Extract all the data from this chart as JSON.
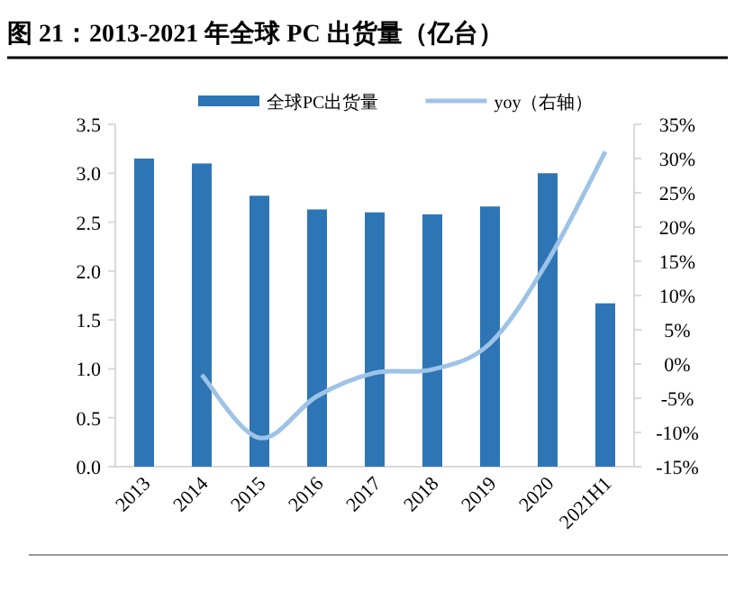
{
  "chart_data": {
    "type": "bar",
    "title": "图 21：2013-2021 年全球 PC 出货量（亿台）",
    "categories": [
      "2013",
      "2014",
      "2015",
      "2016",
      "2017",
      "2018",
      "2019",
      "2020",
      "2021H1"
    ],
    "series": [
      {
        "name": "全球PC出货量",
        "color": "#2e75b6",
        "values": [
          3.15,
          3.1,
          2.77,
          2.63,
          2.6,
          2.58,
          2.66,
          3.0,
          1.67
        ]
      },
      {
        "name": "yoy（右轴）",
        "type": "line",
        "axis": "y2",
        "color": "#9dc3e6",
        "values": [
          null,
          -1.6,
          -10.8,
          -4.7,
          -1.3,
          -0.8,
          3.0,
          15.0,
          31.0
        ]
      }
    ],
    "ylim": [
      0,
      3.5
    ],
    "yticks": [
      {
        "value": 0,
        "label": "0.0"
      },
      {
        "value": 0.5,
        "label": "0.5"
      },
      {
        "value": 1,
        "label": "1.0"
      },
      {
        "value": 1.5,
        "label": "1.5"
      },
      {
        "value": 2,
        "label": "2.0"
      },
      {
        "value": 2.5,
        "label": "2.5"
      },
      {
        "value": 3,
        "label": "3.0"
      },
      {
        "value": 3.5,
        "label": "3.5"
      }
    ],
    "y2lim": [
      -15,
      35
    ],
    "y2ticks": [
      {
        "value": -15,
        "label": "-15%"
      },
      {
        "value": -10,
        "label": "-10%"
      },
      {
        "value": -5,
        "label": "-5%"
      },
      {
        "value": 0,
        "label": "0%"
      },
      {
        "value": 5,
        "label": "5%"
      },
      {
        "value": 10,
        "label": "10%"
      },
      {
        "value": 15,
        "label": "15%"
      },
      {
        "value": 20,
        "label": "20%"
      },
      {
        "value": 25,
        "label": "25%"
      },
      {
        "value": 30,
        "label": "30%"
      },
      {
        "value": 35,
        "label": "35%"
      }
    ],
    "grid": false,
    "legend": "top",
    "marker": "none",
    "line_style": "solid"
  }
}
